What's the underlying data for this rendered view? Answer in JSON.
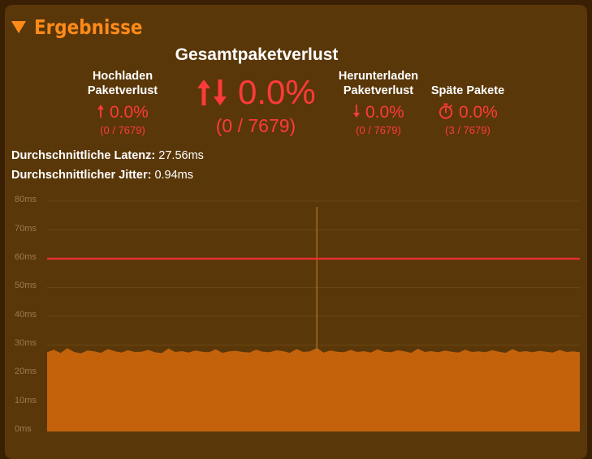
{
  "header": {
    "title": "Ergebnisse"
  },
  "total": {
    "title": "Gesamtpaketverlust",
    "icon": "up-down-arrows-icon",
    "value": "0.0%",
    "sub": "(0 / 7679)"
  },
  "upload": {
    "label_line1": "Hochladen",
    "label_line2": "Paketverlust",
    "icon": "up-arrow-icon",
    "value": "0.0%",
    "sub": "(0 / 7679)"
  },
  "download": {
    "label_line1": "Herunterladen",
    "label_line2": "Paketverlust",
    "icon": "down-arrow-icon",
    "value": "0.0%",
    "sub": "(0 / 7679)"
  },
  "late": {
    "label": "Späte Pakete",
    "icon": "stopwatch-icon",
    "value": "0.0%",
    "sub": "(3 / 7679)"
  },
  "metrics": {
    "latency_label": "Durchschnittliche Latenz:",
    "latency_value": "27.56ms",
    "jitter_label": "Durchschnittlicher Jitter:",
    "jitter_value": "0.94ms"
  },
  "colors": {
    "background": "#3a1f05",
    "panel": "#5a3708",
    "accent": "#ff8a1a",
    "loss": "#ff3a3a",
    "threshold_line": "#e63030",
    "area_fill": "#c4620c"
  },
  "chart_data": {
    "type": "area",
    "ylim": [
      0,
      80
    ],
    "ytick_labels": [
      "80ms",
      "70ms",
      "60ms",
      "50ms",
      "40ms",
      "30ms",
      "20ms",
      "10ms",
      "0ms"
    ],
    "threshold": 60,
    "series": [
      {
        "values": [
          27.5,
          28.4,
          27.2,
          28.9,
          27.6,
          27.1,
          28.1,
          27.8,
          27.3,
          28.6,
          27.9,
          27.4,
          28.2,
          27.6,
          27.7,
          28.3,
          27.5,
          27.2,
          28.8,
          27.6,
          27.9,
          27.4,
          28.1,
          27.7,
          27.5,
          28.5,
          27.3,
          27.8,
          28.0,
          27.6,
          27.4,
          28.4,
          27.7,
          27.5,
          28.2,
          27.9,
          27.3,
          28.6,
          27.6,
          27.8,
          78.0,
          27.4,
          28.1,
          27.7,
          27.5,
          28.3,
          27.6,
          27.9,
          27.4,
          28.5,
          27.7,
          27.5,
          28.2,
          27.8,
          27.3,
          28.7,
          27.6,
          27.9,
          27.5,
          28.1,
          27.7,
          27.4,
          28.4,
          27.6,
          27.8,
          27.5,
          28.2,
          27.7,
          27.3,
          28.6,
          27.6,
          27.9,
          27.5,
          28.0,
          27.7,
          27.4,
          28.3,
          27.6,
          27.8,
          27.5
        ]
      }
    ]
  }
}
